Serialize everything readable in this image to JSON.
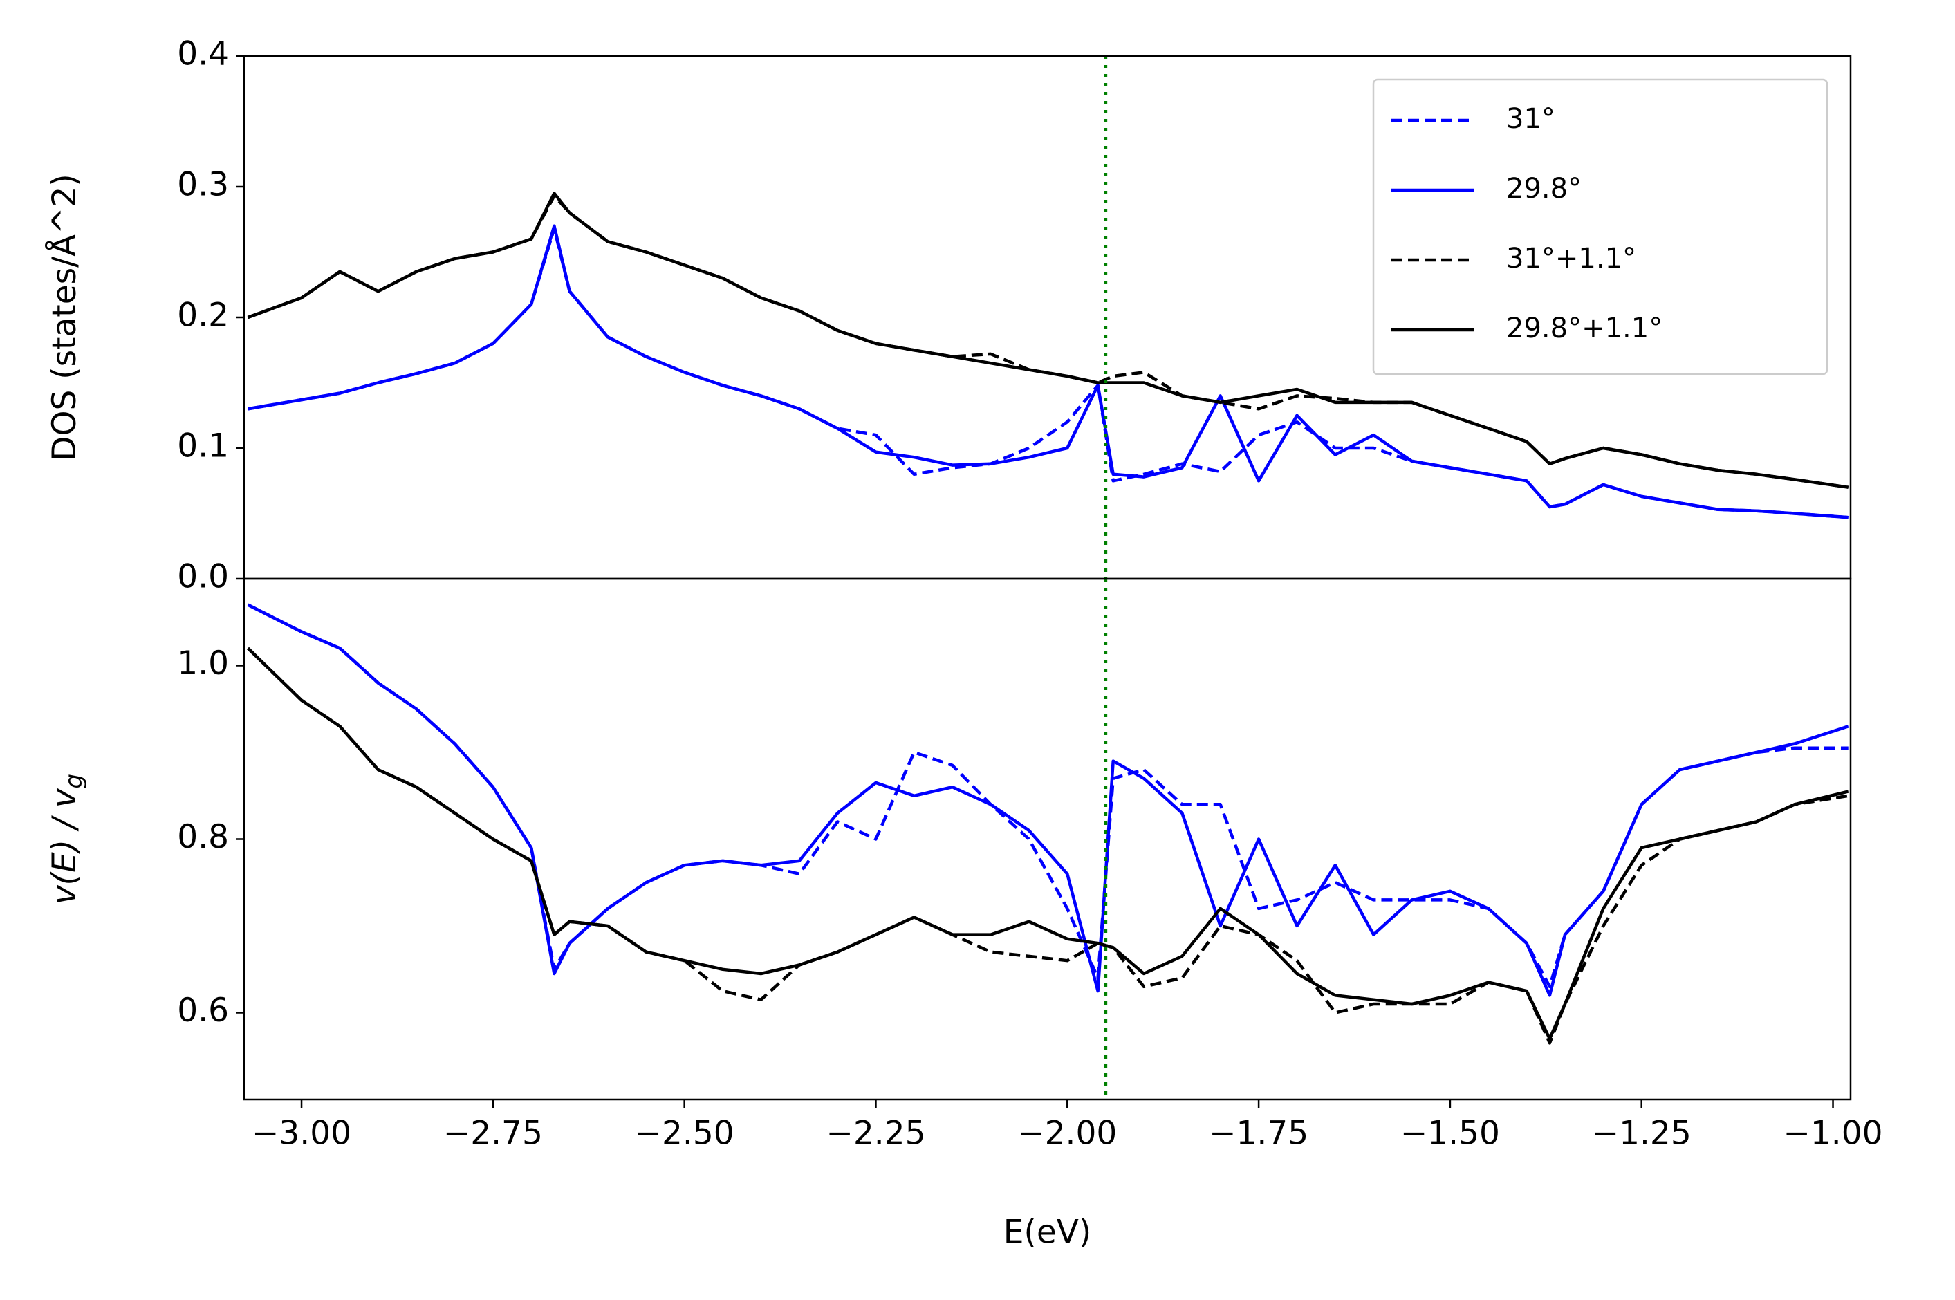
{
  "chart_data": [
    {
      "type": "line",
      "ylabel": "DOS (states/Å^2)",
      "x": [
        -3.07,
        -3.0,
        -2.95,
        -2.9,
        -2.85,
        -2.8,
        -2.75,
        -2.7,
        -2.67,
        -2.65,
        -2.6,
        -2.55,
        -2.5,
        -2.45,
        -2.4,
        -2.35,
        -2.3,
        -2.25,
        -2.2,
        -2.15,
        -2.1,
        -2.05,
        -2.0,
        -1.96,
        -1.94,
        -1.9,
        -1.85,
        -1.8,
        -1.75,
        -1.7,
        -1.65,
        -1.6,
        -1.55,
        -1.5,
        -1.45,
        -1.4,
        -1.37,
        -1.35,
        -1.3,
        -1.25,
        -1.2,
        -1.15,
        -1.1,
        -1.05,
        -0.98
      ],
      "xlim": [
        -3.075,
        -0.977
      ],
      "ylim": [
        0,
        0.4
      ],
      "yticks": [
        {
          "value": 0,
          "label": "0.0"
        },
        0.1,
        0.2,
        0.3,
        0.4
      ],
      "vline": -1.95,
      "vline_color": "#008000",
      "legend": "upper right",
      "series": [
        {
          "name": "31°",
          "color": "#0000ff",
          "dash": true,
          "values": [
            0.13,
            0.137,
            0.142,
            0.15,
            0.157,
            0.165,
            0.18,
            0.21,
            0.268,
            0.22,
            0.185,
            0.17,
            0.158,
            0.148,
            0.14,
            0.13,
            0.115,
            0.11,
            0.08,
            0.085,
            0.088,
            0.1,
            0.12,
            0.148,
            0.075,
            0.08,
            0.088,
            0.082,
            0.11,
            0.12,
            0.1,
            0.1,
            0.09,
            0.085,
            0.08,
            0.075,
            0.055,
            0.057,
            0.072,
            0.063,
            0.058,
            0.053,
            0.052,
            0.05,
            0.047
          ]
        },
        {
          "name": "29.8°",
          "color": "#0000ff",
          "dash": false,
          "values": [
            0.13,
            0.137,
            0.142,
            0.15,
            0.157,
            0.165,
            0.18,
            0.21,
            0.27,
            0.22,
            0.185,
            0.17,
            0.158,
            0.148,
            0.14,
            0.13,
            0.115,
            0.097,
            0.093,
            0.087,
            0.088,
            0.093,
            0.1,
            0.148,
            0.08,
            0.078,
            0.085,
            0.14,
            0.075,
            0.125,
            0.095,
            0.11,
            0.09,
            0.085,
            0.08,
            0.075,
            0.055,
            0.057,
            0.072,
            0.063,
            0.058,
            0.053,
            0.052,
            0.05,
            0.047
          ]
        },
        {
          "name": "31°+1.1°",
          "color": "#000000",
          "dash": true,
          "values": [
            0.2,
            0.215,
            0.235,
            0.22,
            0.235,
            0.245,
            0.25,
            0.26,
            0.293,
            0.28,
            0.258,
            0.25,
            0.24,
            0.23,
            0.215,
            0.205,
            0.19,
            0.18,
            0.175,
            0.17,
            0.172,
            0.16,
            0.155,
            0.15,
            0.155,
            0.158,
            0.14,
            0.135,
            0.13,
            0.14,
            0.138,
            0.135,
            0.135,
            0.125,
            0.115,
            0.105,
            0.088,
            0.092,
            0.1,
            0.095,
            0.088,
            0.083,
            0.08,
            0.076,
            0.07
          ]
        },
        {
          "name": "29.8°+1.1°",
          "color": "#000000",
          "dash": false,
          "values": [
            0.2,
            0.215,
            0.235,
            0.22,
            0.235,
            0.245,
            0.25,
            0.26,
            0.295,
            0.28,
            0.258,
            0.25,
            0.24,
            0.23,
            0.215,
            0.205,
            0.19,
            0.18,
            0.175,
            0.17,
            0.165,
            0.16,
            0.155,
            0.15,
            0.15,
            0.15,
            0.14,
            0.135,
            0.14,
            0.145,
            0.135,
            0.135,
            0.135,
            0.125,
            0.115,
            0.105,
            0.088,
            0.092,
            0.1,
            0.095,
            0.088,
            0.083,
            0.08,
            0.076,
            0.07
          ]
        }
      ]
    },
    {
      "type": "line",
      "ylabel": "v(E) / v",
      "ylabel_sub": "g",
      "xlabel": "E(eV)",
      "x": [
        -3.07,
        -3.0,
        -2.95,
        -2.9,
        -2.85,
        -2.8,
        -2.75,
        -2.7,
        -2.67,
        -2.65,
        -2.6,
        -2.55,
        -2.5,
        -2.45,
        -2.4,
        -2.35,
        -2.3,
        -2.25,
        -2.2,
        -2.15,
        -2.1,
        -2.05,
        -2.0,
        -1.96,
        -1.94,
        -1.9,
        -1.85,
        -1.8,
        -1.75,
        -1.7,
        -1.65,
        -1.6,
        -1.55,
        -1.5,
        -1.45,
        -1.4,
        -1.37,
        -1.35,
        -1.3,
        -1.25,
        -1.2,
        -1.15,
        -1.1,
        -1.05,
        -0.98
      ],
      "xlim": [
        -3.075,
        -0.977
      ],
      "xticks": [
        {
          "value": -3,
          "label": "−3.00"
        },
        {
          "value": -2.75,
          "label": "−2.75"
        },
        {
          "value": -2.5,
          "label": "−2.50"
        },
        {
          "value": -2.25,
          "label": "−2.25"
        },
        {
          "value": -2,
          "label": "−2.00"
        },
        {
          "value": -1.75,
          "label": "−1.75"
        },
        {
          "value": -1.5,
          "label": "−1.50"
        },
        {
          "value": -1.25,
          "label": "−1.25"
        },
        {
          "value": -1,
          "label": "−1.00"
        }
      ],
      "ylim": [
        0.5,
        1.1
      ],
      "yticks": [
        0.6,
        0.8,
        {
          "value": 1,
          "label": "1.0"
        }
      ],
      "vline": -1.95,
      "vline_color": "#008000",
      "series": [
        {
          "name": "31°",
          "color": "#0000ff",
          "dash": true,
          "values": [
            1.07,
            1.039,
            1.02,
            0.98,
            0.95,
            0.91,
            0.86,
            0.79,
            0.65,
            0.68,
            0.72,
            0.75,
            0.77,
            0.775,
            0.77,
            0.76,
            0.82,
            0.8,
            0.9,
            0.885,
            0.84,
            0.8,
            0.72,
            0.64,
            0.87,
            0.88,
            0.84,
            0.84,
            0.72,
            0.73,
            0.75,
            0.73,
            0.73,
            0.73,
            0.72,
            0.68,
            0.63,
            0.69,
            0.74,
            0.84,
            0.88,
            0.89,
            0.9,
            0.905,
            0.905
          ]
        },
        {
          "name": "29.8°",
          "color": "#0000ff",
          "dash": false,
          "values": [
            1.07,
            1.039,
            1.02,
            0.98,
            0.95,
            0.91,
            0.86,
            0.79,
            0.645,
            0.68,
            0.72,
            0.75,
            0.77,
            0.775,
            0.77,
            0.775,
            0.83,
            0.865,
            0.85,
            0.86,
            0.84,
            0.81,
            0.76,
            0.625,
            0.89,
            0.87,
            0.83,
            0.7,
            0.8,
            0.7,
            0.77,
            0.69,
            0.73,
            0.74,
            0.72,
            0.68,
            0.62,
            0.69,
            0.74,
            0.84,
            0.88,
            0.89,
            0.9,
            0.91,
            0.93
          ]
        },
        {
          "name": "31°+1.1°",
          "color": "#000000",
          "dash": true,
          "values": [
            1.02,
            0.96,
            0.93,
            0.88,
            0.86,
            0.83,
            0.8,
            0.775,
            0.69,
            0.705,
            0.7,
            0.67,
            0.66,
            0.625,
            0.615,
            0.655,
            0.67,
            0.69,
            0.71,
            0.69,
            0.67,
            0.665,
            0.66,
            0.68,
            0.675,
            0.63,
            0.64,
            0.7,
            0.69,
            0.66,
            0.6,
            0.61,
            0.61,
            0.61,
            0.635,
            0.625,
            0.565,
            0.61,
            0.7,
            0.77,
            0.8,
            0.81,
            0.82,
            0.84,
            0.85
          ]
        },
        {
          "name": "29.8°+1.1°",
          "color": "#000000",
          "dash": false,
          "values": [
            1.02,
            0.96,
            0.93,
            0.88,
            0.86,
            0.83,
            0.8,
            0.775,
            0.69,
            0.705,
            0.7,
            0.67,
            0.66,
            0.65,
            0.645,
            0.655,
            0.67,
            0.69,
            0.71,
            0.69,
            0.69,
            0.705,
            0.685,
            0.68,
            0.675,
            0.645,
            0.665,
            0.72,
            0.69,
            0.645,
            0.62,
            0.615,
            0.61,
            0.62,
            0.635,
            0.625,
            0.57,
            0.61,
            0.72,
            0.79,
            0.8,
            0.81,
            0.82,
            0.84,
            0.855
          ]
        }
      ]
    }
  ]
}
